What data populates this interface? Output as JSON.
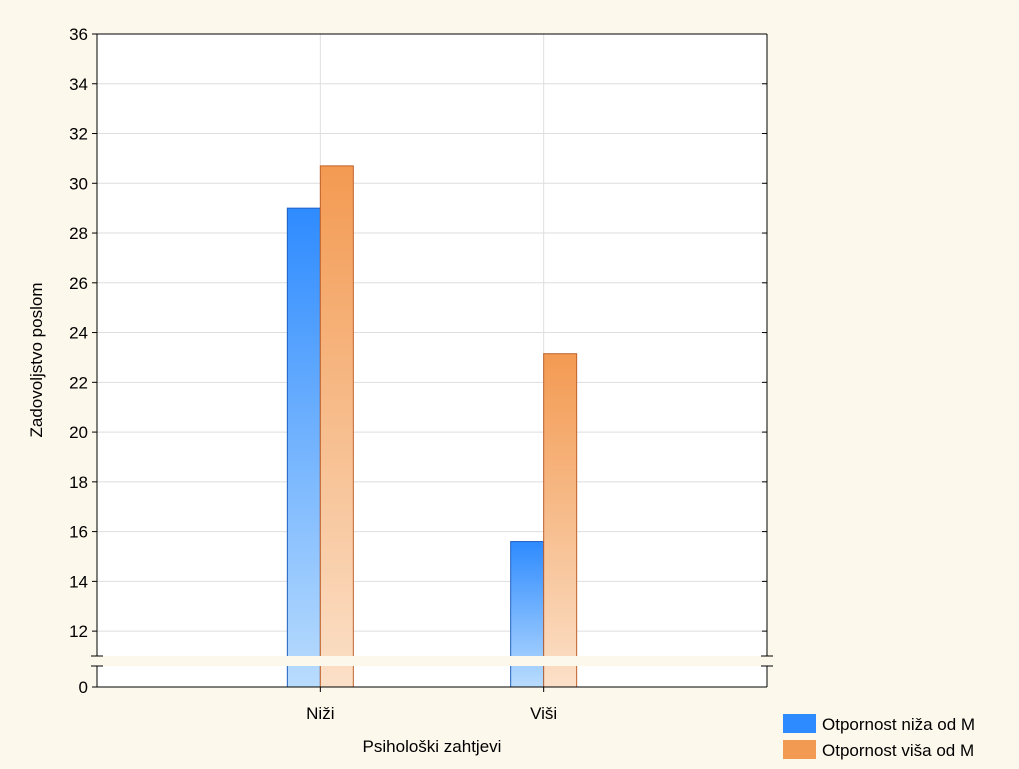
{
  "chart_data": {
    "type": "bar",
    "xlabel": "Psihološki zahtjevi",
    "ylabel": "Zadovoljstvo poslom",
    "categories": [
      "Niži",
      "Viši"
    ],
    "series": [
      {
        "name": "Otpornost niža od M",
        "values": [
          29.0,
          15.6
        ],
        "color": "#2e8bff"
      },
      {
        "name": "Otpornost viša od M",
        "values": [
          30.7,
          23.15
        ],
        "color": "#f39a52"
      }
    ],
    "ylim": [
      11,
      36
    ],
    "axis_break": {
      "lower_tick": 0,
      "resume_at": 11
    },
    "yticks": [
      "0",
      "12",
      "14",
      "16",
      "18",
      "20",
      "22",
      "24",
      "26",
      "28",
      "30",
      "32",
      "34",
      "36"
    ],
    "grid": true,
    "legend_position": "bottom-right"
  }
}
